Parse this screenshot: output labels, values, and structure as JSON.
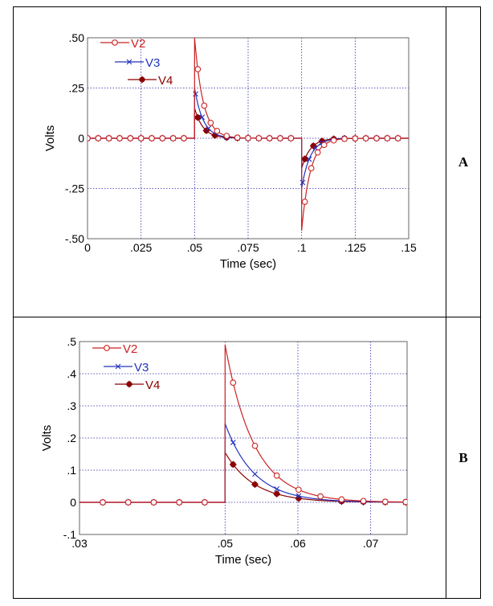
{
  "chart_data": [
    {
      "type": "line",
      "panel_label": "A",
      "ylabel": "Volts",
      "xlabel": "Time (sec)",
      "xlim": [
        0,
        0.15
      ],
      "ylim": [
        -0.5,
        0.5
      ],
      "xticks": [
        0,
        0.025,
        0.05,
        0.075,
        0.1,
        0.125,
        0.15
      ],
      "xtick_labels": [
        "0",
        ".025",
        ".05",
        ".075",
        ".1",
        ".125",
        ".15"
      ],
      "yticks": [
        0.5,
        0.25,
        0,
        -0.25,
        -0.5
      ],
      "ytick_labels": [
        ".50",
        ".25",
        "0",
        "-.25",
        "-.50"
      ],
      "grid": true,
      "legend_position": "top-left",
      "series": [
        {
          "name": "V2",
          "color": "#cc2222",
          "marker": "open-circle",
          "peak_on": 0.5,
          "peak_off": -0.46
        },
        {
          "name": "V3",
          "color": "#2233bb",
          "marker": "x",
          "peak_on": 0.25,
          "peak_off": -0.25
        },
        {
          "name": "V4",
          "color": "#8b0000",
          "marker": "filled-circle",
          "peak_on": 0.15,
          "peak_off": -0.15
        }
      ],
      "pulse_on": 0.05,
      "pulse_off": 0.1,
      "decay_tau": 0.004
    },
    {
      "type": "line",
      "panel_label": "B",
      "ylabel": "Volts",
      "xlabel": "Time (sec)",
      "xlim": [
        0.03,
        0.075
      ],
      "ylim": [
        -0.1,
        0.5
      ],
      "xticks": [
        0.03,
        0.05,
        0.06,
        0.07
      ],
      "xtick_labels": [
        ".03",
        ".05",
        ".06",
        ".07"
      ],
      "yticks": [
        0.5,
        0.4,
        0.3,
        0.2,
        0.1,
        0,
        -0.1
      ],
      "ytick_labels": [
        ".5",
        ".4",
        ".3",
        ".2",
        ".1",
        "0",
        "-.1"
      ],
      "grid": true,
      "legend_position": "top-left",
      "series": [
        {
          "name": "V2",
          "color": "#cc2222",
          "marker": "open-circle",
          "peak_on": 0.49
        },
        {
          "name": "V3",
          "color": "#2233bb",
          "marker": "x",
          "peak_on": 0.245
        },
        {
          "name": "V4",
          "color": "#8b0000",
          "marker": "filled-circle",
          "peak_on": 0.155
        }
      ],
      "pulse_on": 0.05,
      "decay_tau": 0.004
    }
  ]
}
